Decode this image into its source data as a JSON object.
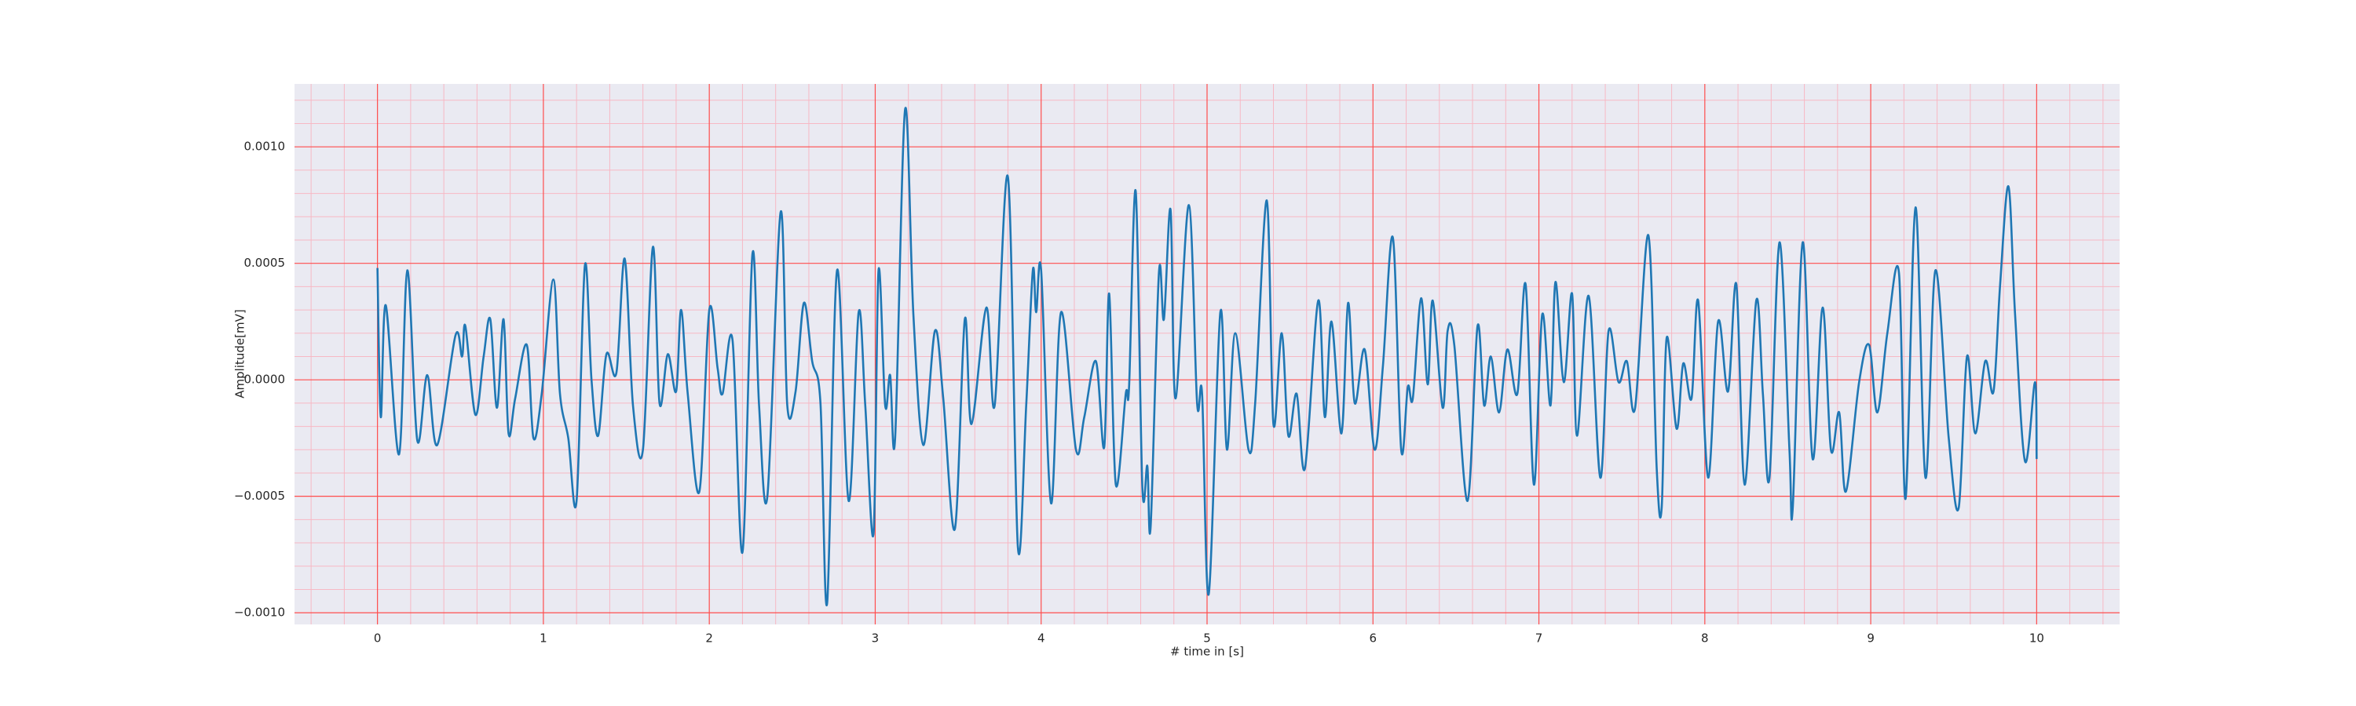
{
  "chart_data": {
    "type": "line",
    "xlabel": "# time in [s]",
    "ylabel": "Amplitude[mV]",
    "color": "#1f77b4",
    "xlim": [
      -0.5,
      10.5
    ],
    "ylim": [
      -0.00105,
      0.00127
    ],
    "xticks": [
      0,
      1,
      2,
      3,
      4,
      5,
      6,
      7,
      8,
      9,
      10
    ],
    "yticks": [
      {
        "value": -0.001,
        "label": "−0.0010"
      },
      {
        "value": -0.0005,
        "label": "−0.0005"
      },
      {
        "value": 0,
        "label": "0.0000"
      },
      {
        "value": 0.0005,
        "label": "0.0005"
      },
      {
        "value": 0.001,
        "label": "0.0010"
      }
    ],
    "grid": true,
    "grid_color": "#ff4d4d",
    "minor_grid_color": "#f7b8c4",
    "background": "#eaeaf2",
    "xminorticks": [
      -0.4,
      -0.2,
      0.2,
      0.4,
      0.6,
      0.8,
      1.2,
      1.4,
      1.6,
      1.8,
      2.2,
      2.4,
      2.6,
      2.8,
      3.2,
      3.4,
      3.6,
      3.8,
      4.2,
      4.4,
      4.6,
      4.8,
      5.2,
      5.4,
      5.6,
      5.8,
      6.2,
      6.4,
      6.6,
      6.8,
      7.2,
      7.4,
      7.6,
      7.8,
      8.2,
      8.4,
      8.6,
      8.8,
      9.2,
      9.4,
      9.6,
      9.8,
      10.2,
      10.4
    ],
    "yminorticks": [
      -0.0009,
      -0.0008,
      -0.0007,
      -0.0006,
      -0.0004,
      -0.0003,
      -0.0002,
      -0.0001,
      0.0001,
      0.0002,
      0.0003,
      0.0004,
      0.0006,
      0.0007,
      0.0008,
      0.0009,
      0.0011,
      0.0012
    ],
    "x": [
      0.0,
      0.02,
      0.05,
      0.13,
      0.18,
      0.24,
      0.3,
      0.36,
      0.47,
      0.51,
      0.53,
      0.59,
      0.64,
      0.68,
      0.72,
      0.76,
      0.79,
      0.83,
      0.9,
      0.94,
      0.99,
      1.06,
      1.1,
      1.15,
      1.2,
      1.25,
      1.29,
      1.33,
      1.38,
      1.44,
      1.49,
      1.54,
      1.6,
      1.66,
      1.7,
      1.75,
      1.8,
      1.83,
      1.87,
      1.94,
      2.0,
      2.05,
      2.08,
      2.14,
      2.2,
      2.26,
      2.3,
      2.35,
      2.43,
      2.47,
      2.52,
      2.57,
      2.62,
      2.67,
      2.71,
      2.77,
      2.84,
      2.9,
      2.94,
      2.99,
      3.02,
      3.06,
      3.09,
      3.12,
      3.18,
      3.23,
      3.29,
      3.36,
      3.41,
      3.48,
      3.54,
      3.58,
      3.67,
      3.72,
      3.8,
      3.86,
      3.91,
      3.95,
      3.97,
      4.0,
      4.06,
      4.12,
      4.21,
      4.26,
      4.33,
      4.38,
      4.41,
      4.45,
      4.51,
      4.53,
      4.57,
      4.61,
      4.64,
      4.66,
      4.71,
      4.74,
      4.78,
      4.81,
      4.89,
      4.94,
      4.97,
      5.01,
      5.08,
      5.12,
      5.17,
      5.25,
      5.29,
      5.36,
      5.4,
      5.45,
      5.49,
      5.54,
      5.59,
      5.67,
      5.71,
      5.75,
      5.81,
      5.85,
      5.89,
      5.95,
      6.01,
      6.06,
      6.12,
      6.17,
      6.21,
      6.24,
      6.29,
      6.33,
      6.36,
      6.42,
      6.45,
      6.49,
      6.57,
      6.63,
      6.67,
      6.71,
      6.76,
      6.81,
      6.87,
      6.92,
      6.97,
      7.02,
      7.07,
      7.1,
      7.15,
      7.2,
      7.23,
      7.3,
      7.37,
      7.42,
      7.48,
      7.53,
      7.58,
      7.66,
      7.71,
      7.74,
      7.77,
      7.83,
      7.87,
      7.92,
      7.96,
      8.02,
      8.08,
      8.14,
      8.19,
      8.24,
      8.31,
      8.35,
      8.39,
      8.45,
      8.51,
      8.53,
      8.59,
      8.65,
      8.71,
      8.76,
      8.81,
      8.85,
      8.93,
      8.99,
      9.04,
      9.1,
      9.17,
      9.21,
      9.27,
      9.33,
      9.39,
      9.47,
      9.53,
      9.58,
      9.63,
      9.69,
      9.74,
      9.78,
      9.83,
      9.87,
      9.93,
      9.99,
      10.0
    ],
    "values": [
      0.00048,
      -0.00016,
      0.00032,
      -0.00032,
      0.00047,
      -0.00026,
      2e-05,
      -0.00028,
      0.00019,
      0.0001,
      0.00023,
      -0.00015,
      0.0001,
      0.00026,
      -0.00012,
      0.00026,
      -0.00023,
      -8e-05,
      0.00015,
      -0.00025,
      -6e-05,
      0.00043,
      -6e-05,
      -0.00025,
      -0.00052,
      0.00049,
      0,
      -0.00024,
      0.00011,
      3e-05,
      0.00052,
      -0.00011,
      -0.0003,
      0.00057,
      -0.0001,
      0.00011,
      -5e-05,
      0.0003,
      -6e-05,
      -0.00048,
      0.0003,
      5e-05,
      -6e-05,
      0.00017,
      -0.00074,
      0.00054,
      -0.00011,
      -0.0005,
      0.00072,
      -0.00011,
      -5e-05,
      0.00033,
      8e-05,
      -0.0001,
      -0.00096,
      0.00047,
      -0.00052,
      0.00029,
      -0.00011,
      -0.00066,
      0.00047,
      -0.00011,
      2e-05,
      -0.00025,
      0.00116,
      0.00028,
      -0.00028,
      0.00021,
      -8e-05,
      -0.00064,
      0.00026,
      -0.00019,
      0.00031,
      -0.00011,
      0.00087,
      -0.00072,
      -0.00011,
      0.00047,
      0.00029,
      0.00047,
      -0.00053,
      0.00029,
      -0.0003,
      -0.00016,
      8e-05,
      -0.00029,
      0.00037,
      -0.00045,
      -6e-05,
      -3e-05,
      0.00081,
      -0.00046,
      -0.00037,
      -0.00063,
      0.00046,
      0.00026,
      0.00073,
      -8e-05,
      0.00075,
      -0.0001,
      -6e-05,
      -0.00092,
      0.00029,
      -0.0003,
      0.0002,
      -0.0003,
      -0.0001,
      0.00077,
      -0.00019,
      0.0002,
      -0.00024,
      -6e-05,
      -0.00038,
      0.00034,
      -0.00016,
      0.00025,
      -0.00023,
      0.00033,
      -0.0001,
      0.00013,
      -0.0003,
      6e-05,
      0.00061,
      -0.0003,
      -3e-05,
      -8e-05,
      0.00035,
      -2e-05,
      0.00034,
      -0.00012,
      0.00021,
      0.00015,
      -0.00052,
      0.00023,
      -0.00011,
      0.0001,
      -0.00014,
      0.00013,
      -6e-05,
      0.00041,
      -0.00045,
      0.00028,
      -0.00011,
      0.00042,
      -1e-05,
      0.00037,
      -0.00024,
      0.00036,
      -0.00042,
      0.00021,
      -1e-05,
      8e-05,
      -0.00012,
      0.00062,
      -0.00038,
      -0.00055,
      0.00018,
      -0.00021,
      7e-05,
      -8e-05,
      0.00034,
      -0.00042,
      0.00025,
      -5e-05,
      0.00041,
      -0.00045,
      0.00034,
      -6e-05,
      -0.00042,
      0.00059,
      -0.0003,
      -0.00055,
      0.00059,
      -0.00034,
      0.00031,
      -0.0003,
      -0.00014,
      -0.00048,
      -1e-05,
      0.00015,
      -0.00014,
      0.0002,
      0.00046,
      -0.00051,
      0.00074,
      -0.00042,
      0.00047,
      -0.00025,
      -0.00055,
      0.0001,
      -0.00023,
      8e-05,
      -5e-05,
      0.00041,
      0.00083,
      0.00028,
      -0.00035,
      -1e-05,
      -0.00034
    ]
  }
}
